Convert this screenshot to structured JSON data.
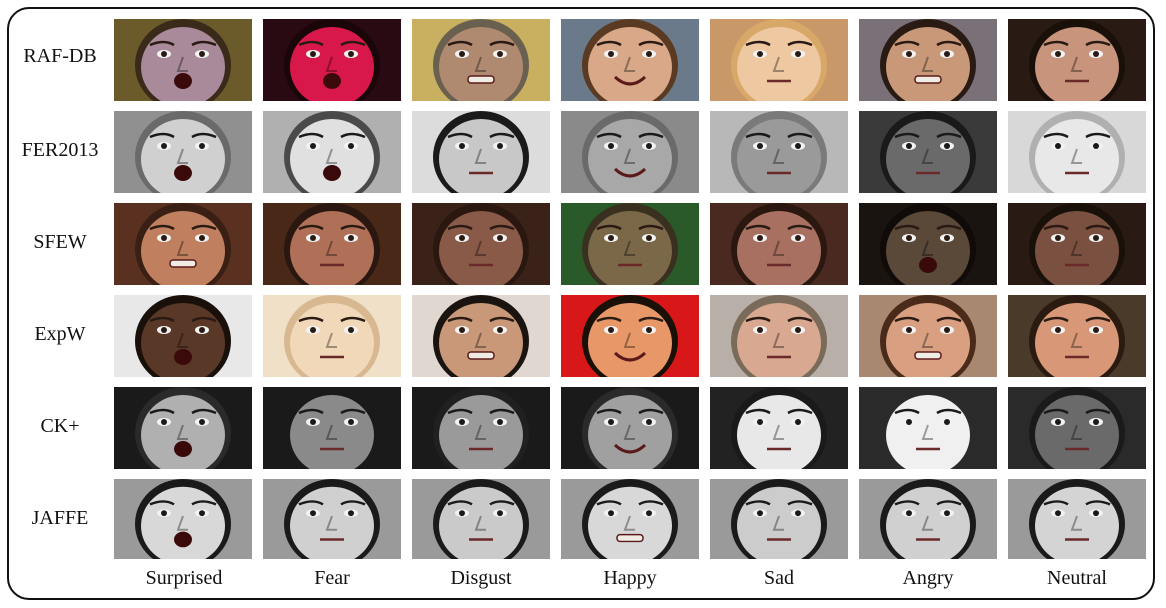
{
  "datasets": [
    "RAF-DB",
    "FER2013",
    "SFEW",
    "ExpW",
    "CK+",
    "JAFFE"
  ],
  "expressions": [
    "Surprised",
    "Fear",
    "Disgust",
    "Happy",
    "Sad",
    "Angry",
    "Neutral"
  ],
  "faces": [
    [
      {
        "bg": "#6b5a2a",
        "skin": "#a88a9a",
        "hair": "#3a2a1a",
        "tone": "color",
        "mouth": "open"
      },
      {
        "bg": "#2a0a12",
        "skin": "#d8184a",
        "hair": "#1a0508",
        "tone": "color",
        "mouth": "open"
      },
      {
        "bg": "#c8b060",
        "skin": "#b08a70",
        "hair": "#6a6050",
        "tone": "color",
        "mouth": "teeth"
      },
      {
        "bg": "#6a7a8a",
        "skin": "#d8a888",
        "hair": "#5a3a22",
        "tone": "color",
        "mouth": "smile"
      },
      {
        "bg": "#c89868",
        "skin": "#eec8a0",
        "hair": "#d8a868",
        "tone": "color",
        "mouth": "flat"
      },
      {
        "bg": "#7a7078",
        "skin": "#c89878",
        "hair": "#2a1a14",
        "tone": "color",
        "mouth": "teeth"
      },
      {
        "bg": "#2a1a14",
        "skin": "#c8947c",
        "hair": "#1a100a",
        "tone": "color",
        "mouth": "flat"
      }
    ],
    [
      {
        "bg": "#909090",
        "skin": "#d0d0d0",
        "hair": "#6a6a6a",
        "tone": "gray",
        "mouth": "open"
      },
      {
        "bg": "#b0b0b0",
        "skin": "#e0e0e0",
        "hair": "#4a4a4a",
        "tone": "gray",
        "mouth": "open"
      },
      {
        "bg": "#dcdcdc",
        "skin": "#c8c8c8",
        "hair": "#1a1a1a",
        "tone": "gray",
        "mouth": "flat"
      },
      {
        "bg": "#8a8a8a",
        "skin": "#a8a8a8",
        "hair": "#6a6a6a",
        "tone": "gray",
        "mouth": "smile"
      },
      {
        "bg": "#b8b8b8",
        "skin": "#9a9a9a",
        "hair": "#7a7a7a",
        "tone": "gray",
        "mouth": "flat"
      },
      {
        "bg": "#3a3a3a",
        "skin": "#6a6a6a",
        "hair": "#1a1a1a",
        "tone": "gray",
        "mouth": "flat"
      },
      {
        "bg": "#d8d8d8",
        "skin": "#e8e8e8",
        "hair": "#b0b0b0",
        "tone": "gray",
        "mouth": "flat"
      }
    ],
    [
      {
        "bg": "#5a3020",
        "skin": "#c08060",
        "hair": "#3a2014",
        "tone": "color",
        "mouth": "teeth"
      },
      {
        "bg": "#4a2818",
        "skin": "#b07058",
        "hair": "#2a1810",
        "tone": "color",
        "mouth": "flat"
      },
      {
        "bg": "#3a2218",
        "skin": "#8a5a48",
        "hair": "#2a1810",
        "tone": "color",
        "mouth": "flat"
      },
      {
        "bg": "#2a5a2a",
        "skin": "#7a6848",
        "hair": "#3a3020",
        "tone": "color",
        "mouth": "flat"
      },
      {
        "bg": "#4a2a20",
        "skin": "#a87060",
        "hair": "#2a1810",
        "tone": "color",
        "mouth": "flat"
      },
      {
        "bg": "#1a1410",
        "skin": "#5a4838",
        "hair": "#100a08",
        "tone": "color",
        "mouth": "open"
      },
      {
        "bg": "#2a1a14",
        "skin": "#7a5040",
        "hair": "#1a100a",
        "tone": "color",
        "mouth": "flat"
      }
    ],
    [
      {
        "bg": "#e8e8e8",
        "skin": "#5a3828",
        "hair": "#1a100a",
        "tone": "color",
        "mouth": "open"
      },
      {
        "bg": "#f0e0c8",
        "skin": "#f0d8b8",
        "hair": "#d8b890",
        "tone": "color",
        "mouth": "flat"
      },
      {
        "bg": "#e0d8d0",
        "skin": "#c89878",
        "hair": "#1a1410",
        "tone": "color",
        "mouth": "teeth"
      },
      {
        "bg": "#d81818",
        "skin": "#e89868",
        "hair": "#1a1008",
        "tone": "color",
        "mouth": "smile"
      },
      {
        "bg": "#b8b0a8",
        "skin": "#d8a890",
        "hair": "#7a6a5a",
        "tone": "color",
        "mouth": "flat"
      },
      {
        "bg": "#a88870",
        "skin": "#d8a080",
        "hair": "#4a2a18",
        "tone": "color",
        "mouth": "teeth"
      },
      {
        "bg": "#4a3a2a",
        "skin": "#d89878",
        "hair": "#2a1a10",
        "tone": "color",
        "mouth": "flat"
      }
    ],
    [
      {
        "bg": "#1a1a1a",
        "skin": "#b0b0b0",
        "hair": "#2a2a2a",
        "tone": "gray",
        "mouth": "open"
      },
      {
        "bg": "#1a1a1a",
        "skin": "#8a8a8a",
        "hair": "#1a1a1a",
        "tone": "gray",
        "mouth": "flat"
      },
      {
        "bg": "#1a1a1a",
        "skin": "#9a9a9a",
        "hair": "#202020",
        "tone": "gray",
        "mouth": "flat"
      },
      {
        "bg": "#1a1a1a",
        "skin": "#a0a0a0",
        "hair": "#2a2a2a",
        "tone": "gray",
        "mouth": "smile"
      },
      {
        "bg": "#222222",
        "skin": "#e8e8e8",
        "hair": "#1a1a1a",
        "tone": "gray",
        "mouth": "flat"
      },
      {
        "bg": "#2a2a2a",
        "skin": "#f0f0f0",
        "hair": "#2a2a2a",
        "tone": "gray",
        "mouth": "flat"
      },
      {
        "bg": "#2a2a2a",
        "skin": "#6a6a6a",
        "hair": "#1a1a1a",
        "tone": "gray",
        "mouth": "flat"
      }
    ],
    [
      {
        "bg": "#9a9a9a",
        "skin": "#d8d8d8",
        "hair": "#1a1a1a",
        "tone": "gray",
        "mouth": "open"
      },
      {
        "bg": "#9a9a9a",
        "skin": "#d0d0d0",
        "hair": "#1a1a1a",
        "tone": "gray",
        "mouth": "flat"
      },
      {
        "bg": "#9a9a9a",
        "skin": "#cacaca",
        "hair": "#1a1a1a",
        "tone": "gray",
        "mouth": "flat"
      },
      {
        "bg": "#9a9a9a",
        "skin": "#d8d8d8",
        "hair": "#1a1a1a",
        "tone": "gray",
        "mouth": "teeth"
      },
      {
        "bg": "#9a9a9a",
        "skin": "#cccccc",
        "hair": "#1a1a1a",
        "tone": "gray",
        "mouth": "flat"
      },
      {
        "bg": "#9a9a9a",
        "skin": "#d0d0d0",
        "hair": "#1a1a1a",
        "tone": "gray",
        "mouth": "flat"
      },
      {
        "bg": "#9a9a9a",
        "skin": "#d4d4d4",
        "hair": "#1a1a1a",
        "tone": "gray",
        "mouth": "flat"
      }
    ]
  ]
}
